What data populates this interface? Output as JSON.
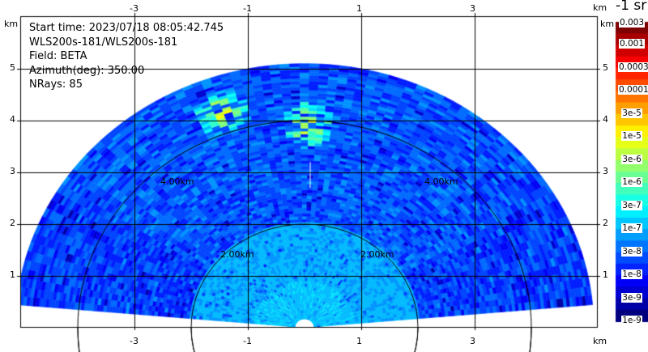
{
  "chart_data": {
    "type": "heatmap",
    "info": {
      "start_time": "Start time: 2023/07/18 08:05:42.745",
      "instrument": "WLS200s-181/WLS200s-181",
      "field": "Field: BETA",
      "azimuth": "Azimuth(deg): 350.00",
      "nrays": "NRays: 85"
    },
    "x_unit": "km",
    "y_unit": "km",
    "xlim": [
      -5.0,
      5.15
    ],
    "ylim": [
      0,
      6
    ],
    "x_ticks": [
      "-3",
      "-1",
      "1",
      "3"
    ],
    "y_ticks": [
      "5",
      "4",
      "3",
      "2",
      "1"
    ],
    "grid": true,
    "range_rings": [
      {
        "range_km": 2,
        "label": "2.00km"
      },
      {
        "range_km": 4,
        "label": "4.00km"
      }
    ],
    "colorbar": {
      "title": "-1 sr",
      "scale": "log",
      "labels": [
        "0.003",
        "0.001",
        "0.0003",
        "0.0001",
        "3e-5",
        "1e-5",
        "3e-6",
        "1e-6",
        "3e-7",
        "1e-7",
        "3e-8",
        "1e-8",
        "3e-9",
        "1e-9"
      ]
    },
    "sector": {
      "azimuth_range_deg": [
        -85,
        85
      ],
      "max_range_km": 5.1,
      "dominant_value": "1e-7 to 3e-8",
      "hotspots": [
        {
          "x": -1.5,
          "y": 4.1,
          "value": "3e-5"
        },
        {
          "x": 0,
          "y": 3.9,
          "value": "3e-5"
        }
      ]
    }
  }
}
